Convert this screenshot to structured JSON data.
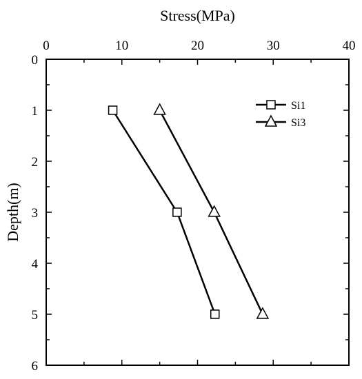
{
  "chart_data": {
    "type": "line",
    "xlabel": "Stress(MPa)",
    "ylabel": "Depth(m)",
    "xlim": [
      0,
      40
    ],
    "ylim": [
      0,
      6
    ],
    "y_inverted": true,
    "x_axis_position": "top",
    "x_major_ticks": [
      0,
      10,
      20,
      30,
      40
    ],
    "y_major_ticks": [
      0,
      1,
      2,
      3,
      4,
      5,
      6
    ],
    "x_tick_labels": [
      "0",
      "10",
      "20",
      "30",
      "40"
    ],
    "y_tick_labels": [
      "0",
      "1",
      "2",
      "3",
      "4",
      "5",
      "6"
    ],
    "grid": false,
    "legend_position": "top-right",
    "series": [
      {
        "name": "Si1",
        "marker": "square",
        "color": "#000000",
        "points": [
          {
            "x": 8.8,
            "y": 1
          },
          {
            "x": 17.3,
            "y": 3
          },
          {
            "x": 22.3,
            "y": 5
          }
        ]
      },
      {
        "name": "Si3",
        "marker": "triangle",
        "color": "#000000",
        "points": [
          {
            "x": 15.0,
            "y": 1
          },
          {
            "x": 22.2,
            "y": 3
          },
          {
            "x": 28.6,
            "y": 5
          }
        ]
      }
    ]
  }
}
